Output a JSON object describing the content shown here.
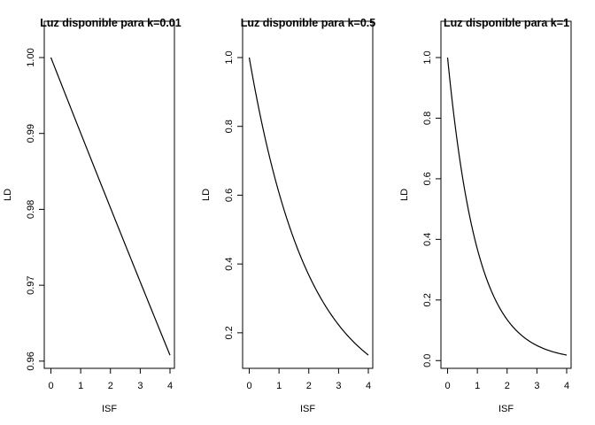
{
  "chart_data": [
    {
      "type": "line",
      "title": "Luz disponible para k=0.01",
      "xlabel": "ISF",
      "ylabel": "LD",
      "xlim": [
        0,
        4
      ],
      "ylim": [
        0.9608,
        1.0
      ],
      "xticks": [
        0,
        1,
        2,
        3,
        4
      ],
      "yticks": [
        0.96,
        0.97,
        0.98,
        0.99,
        1.0
      ],
      "ytick_labels": [
        "0.96",
        "0.97",
        "0.98",
        "0.99",
        "1.00"
      ],
      "k": 0.01,
      "x": [
        0,
        0.25,
        0.5,
        0.75,
        1,
        1.25,
        1.5,
        1.75,
        2,
        2.25,
        2.5,
        2.75,
        3,
        3.25,
        3.5,
        3.75,
        4
      ],
      "y": [
        1.0,
        0.9975,
        0.995,
        0.9925,
        0.99,
        0.9876,
        0.9851,
        0.9827,
        0.9802,
        0.9778,
        0.9753,
        0.9729,
        0.9704,
        0.968,
        0.9656,
        0.9632,
        0.9608
      ]
    },
    {
      "type": "line",
      "title": "Luz disponible para k=0.5",
      "xlabel": "ISF",
      "ylabel": "LD",
      "xlim": [
        0,
        4
      ],
      "ylim": [
        0.1353,
        1.0
      ],
      "xticks": [
        0,
        1,
        2,
        3,
        4
      ],
      "yticks": [
        0.2,
        0.4,
        0.6,
        0.8,
        1.0
      ],
      "ytick_labels": [
        "0.2",
        "0.4",
        "0.6",
        "0.8",
        "1.0"
      ],
      "k": 0.5,
      "x": [
        0,
        0.25,
        0.5,
        0.75,
        1,
        1.25,
        1.5,
        1.75,
        2,
        2.25,
        2.5,
        2.75,
        3,
        3.25,
        3.5,
        3.75,
        4
      ],
      "y": [
        1.0,
        0.8825,
        0.7788,
        0.6873,
        0.6065,
        0.5353,
        0.4724,
        0.4169,
        0.3679,
        0.3247,
        0.2865,
        0.2528,
        0.2231,
        0.1969,
        0.1738,
        0.1534,
        0.1353
      ]
    },
    {
      "type": "line",
      "title": "Luz disponible para k=1",
      "xlabel": "ISF",
      "ylabel": "LD",
      "xlim": [
        0,
        4
      ],
      "ylim": [
        0.0183,
        1.0
      ],
      "xticks": [
        0,
        1,
        2,
        3,
        4
      ],
      "yticks": [
        0.0,
        0.2,
        0.4,
        0.6,
        0.8,
        1.0
      ],
      "ytick_labels": [
        "0.0",
        "0.2",
        "0.4",
        "0.6",
        "0.8",
        "1.0"
      ],
      "k": 1,
      "x": [
        0,
        0.25,
        0.5,
        0.75,
        1,
        1.25,
        1.5,
        1.75,
        2,
        2.25,
        2.5,
        2.75,
        3,
        3.25,
        3.5,
        3.75,
        4
      ],
      "y": [
        1.0,
        0.7788,
        0.6065,
        0.4724,
        0.3679,
        0.2865,
        0.2231,
        0.1738,
        0.1353,
        0.1054,
        0.0821,
        0.0639,
        0.0498,
        0.0388,
        0.0302,
        0.0235,
        0.0183
      ]
    }
  ]
}
